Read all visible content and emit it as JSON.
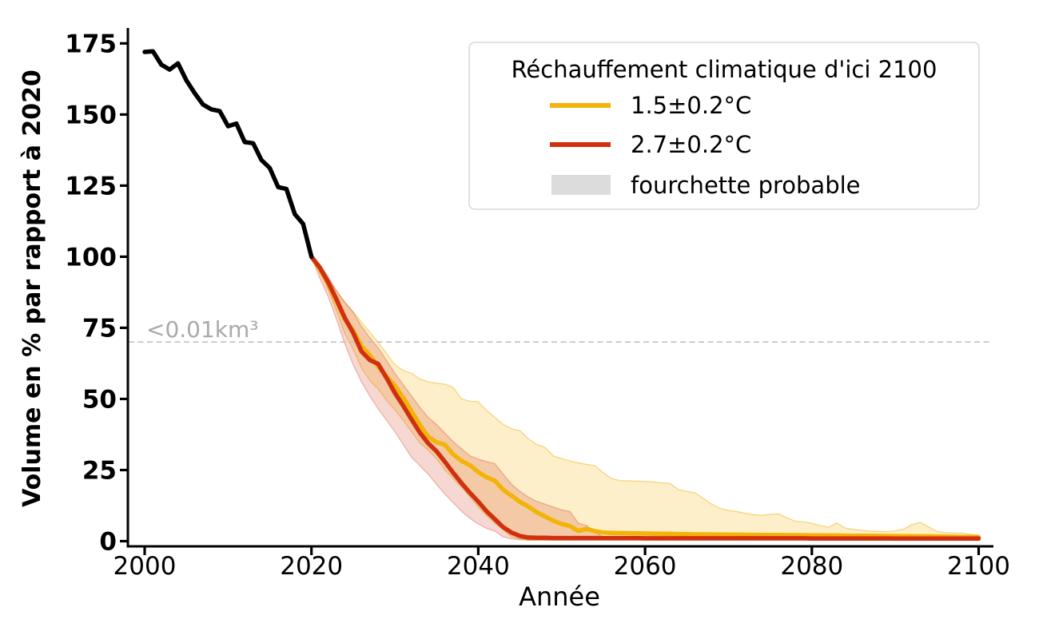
{
  "chart_data": {
    "type": "line",
    "title": "",
    "xlabel": "Année",
    "ylabel": "Volume en % par rapport à 2020",
    "xticks": [
      2000,
      2020,
      2040,
      2060,
      2080,
      2100
    ],
    "yticks": [
      0,
      25,
      50,
      75,
      100,
      125,
      150,
      175
    ],
    "xlim": [
      1998,
      2101.5
    ],
    "ylim": [
      -1.8,
      182
    ],
    "grid": false,
    "threshold": {
      "text": "<0.01km³",
      "value": 70,
      "line_color": "#C0C0C0",
      "text_color": "#A9A9A9"
    },
    "legend": {
      "position": "upper right",
      "title": "Réchauffement climatique d'ici 2100",
      "entries": [
        {
          "label": "1.5±0.2°C",
          "type": "line",
          "color": "#F2B408"
        },
        {
          "label": "2.7±0.2°C",
          "type": "line",
          "color": "#D0300F"
        },
        {
          "label": "fourchette probable",
          "type": "patch",
          "fill": "#DCDCDC",
          "edge": "#C6C6C6"
        }
      ]
    },
    "series": [
      {
        "name": "volume-historique",
        "color": "#000000",
        "start_year": 2000,
        "values": [
          172,
          172.2,
          167.5,
          165.8,
          168,
          162,
          157.5,
          153.5,
          151.8,
          151.2,
          145.9,
          146.8,
          140.3,
          139.9,
          134,
          131.2,
          124.5,
          123.8,
          115,
          111.5,
          100
        ]
      },
      {
        "name": "scenario-1.5C",
        "label": "1.5±0.2°C",
        "color": "#F2B408",
        "start_year": 2020,
        "values": [
          100,
          95.6,
          90.4,
          84.3,
          78.1,
          74,
          68.6,
          65.4,
          61.4,
          58,
          54.7,
          50.4,
          45.7,
          40.9,
          36.7,
          34.8,
          33.9,
          30.5,
          28.2,
          26.7,
          24.3,
          22.5,
          21.2,
          18,
          16,
          13.8,
          12.2,
          10.2,
          8.7,
          7.2,
          6,
          5.3,
          3.6,
          4.3,
          3.5,
          3,
          2.9,
          2.85,
          2.8,
          2.75,
          2.7,
          2.65,
          2.6,
          2.55,
          2.5,
          2.45,
          2.4,
          2.38,
          2.35,
          2.32,
          2.3,
          2.28,
          2.25,
          2.22,
          2.2,
          2.18,
          2.15,
          2.12,
          2.1,
          2.08,
          2.05,
          2.02,
          2,
          1.98,
          1.95,
          1.92,
          1.9,
          1.88,
          1.85,
          1.82,
          1.8,
          1.78,
          1.75,
          1.72,
          1.7,
          1.65,
          1.6,
          1.55,
          1.5,
          1.45,
          1.4
        ],
        "band": {
          "fill": "rgba(246,183,10,0.22)",
          "edge": "rgba(240,180,30,0.55)",
          "upper": [
            100,
            97.5,
            92,
            88,
            84,
            80.5,
            77,
            73.5,
            70,
            66,
            62,
            60,
            59,
            57,
            56,
            55.5,
            55.2,
            54,
            50,
            49.2,
            49,
            46,
            43.5,
            41,
            39.5,
            38.8,
            36,
            34,
            33,
            30,
            29,
            28.2,
            27.5,
            27,
            26.5,
            24,
            22,
            21.3,
            21.2,
            21.1,
            21,
            20.8,
            20.5,
            20.3,
            18.1,
            17.5,
            17,
            15,
            13,
            11.5,
            10.8,
            10.4,
            9.8,
            9.3,
            9.1,
            9.4,
            9.6,
            8.2,
            7,
            6.8,
            6.3,
            5.5,
            4.9,
            6.4,
            4.6,
            4.1,
            3.8,
            3.5,
            3.4,
            3.3,
            3.6,
            4.2,
            5.8,
            6.6,
            5,
            3.4,
            3,
            2.9,
            2.8,
            2.4,
            2.2
          ],
          "lower": [
            100,
            95,
            88.5,
            81,
            73,
            67.5,
            61,
            56.5,
            53.5,
            49.5,
            46.2,
            42.5,
            38.5,
            34.5,
            32,
            29,
            25,
            22,
            19,
            15.5,
            12,
            9,
            6.3,
            4,
            1.5,
            0.7,
            0.4,
            0.4,
            0.4,
            0.4,
            0.4,
            0.4,
            0.4,
            0.4,
            0.4,
            0.4,
            0.4,
            0.4,
            0.4,
            0.4,
            0.4,
            0.4,
            0.4,
            0.4,
            0.4,
            0.4,
            0.4,
            0.4,
            0.4,
            0.4,
            0.4,
            0.4,
            0.4,
            0.4,
            0.4,
            0.4,
            0.4,
            0.4,
            0.4,
            0.4,
            0.4,
            0.4,
            0.4,
            0.4,
            0.4,
            0.4,
            0.4,
            0.4,
            0.4,
            0.4,
            0.4,
            0.4,
            0.4,
            0.4,
            0.4,
            0.4,
            0.4,
            0.4,
            0.4,
            0.4,
            0.4
          ]
        }
      },
      {
        "name": "scenario-2.7C",
        "label": "2.7±0.2°C",
        "color": "#D0300F",
        "start_year": 2020,
        "values": [
          100,
          96.2,
          91.1,
          85,
          78.5,
          73.2,
          66.7,
          63.7,
          62.3,
          57.4,
          52.1,
          47.6,
          42.8,
          38.1,
          34.4,
          31.6,
          27.9,
          24,
          20.4,
          17,
          13.9,
          10.5,
          7.7,
          4.9,
          3,
          1.8,
          1.3,
          1.2,
          1.2,
          1.1,
          1.1,
          1.1,
          1.1,
          1.1,
          1.1,
          1.1,
          1.1,
          1.1,
          1.1,
          1.1,
          1,
          1,
          1,
          1,
          1,
          1,
          1,
          1,
          1,
          1,
          1,
          1,
          1,
          1,
          1,
          1,
          1,
          1,
          1,
          1,
          0.95,
          0.95,
          0.95,
          0.95,
          0.95,
          0.95,
          0.95,
          0.95,
          0.95,
          0.95,
          0.9,
          0.9,
          0.9,
          0.9,
          0.9,
          0.9,
          0.9,
          0.9,
          0.9,
          0.9,
          0.9
        ],
        "band": {
          "fill": "rgba(208,45,18,0.19)",
          "edge": "rgba(208,45,18,0.32)",
          "upper": [
            100,
            97.3,
            93,
            88,
            84,
            80.5,
            75.5,
            71.5,
            68,
            63.5,
            59,
            55,
            51,
            47,
            43.5,
            41,
            38,
            35,
            32.5,
            30,
            28.8,
            28,
            27.2,
            23.5,
            20,
            17.5,
            15.5,
            14,
            13,
            12,
            11,
            10.4,
            6.3,
            5.5,
            3,
            1.6,
            1.2,
            1.15,
            1.1,
            1.1,
            1,
            1,
            1,
            1,
            1,
            1,
            1,
            1,
            1,
            1,
            1,
            1,
            1,
            1,
            1,
            1,
            1,
            1,
            1,
            1,
            0.95,
            0.95,
            0.95,
            0.95,
            0.95,
            0.95,
            0.95,
            0.95,
            0.95,
            0.95,
            0.9,
            0.9,
            0.9,
            0.9,
            0.9,
            0.9,
            0.9,
            0.9,
            0.9,
            0.9,
            0.9
          ],
          "lower": [
            100,
            92.5,
            86,
            78,
            69.5,
            62,
            56,
            51,
            46.5,
            42.5,
            38.5,
            34,
            29.5,
            26.5,
            23.5,
            20,
            16.5,
            13.5,
            10.5,
            8,
            6,
            4.5,
            3.5,
            1.5,
            0.8,
            0.5,
            0.35,
            0.35,
            0.35,
            0.35,
            0.35,
            0.35,
            0.35,
            0.35,
            0.35,
            0.35,
            0.35,
            0.35,
            0.35,
            0.35,
            0.35,
            0.35,
            0.35,
            0.35,
            0.35,
            0.35,
            0.35,
            0.35,
            0.35,
            0.35,
            0.35,
            0.35,
            0.35,
            0.35,
            0.35,
            0.35,
            0.35,
            0.35,
            0.35,
            0.35,
            0.35,
            0.35,
            0.35,
            0.35,
            0.35,
            0.35,
            0.35,
            0.35,
            0.35,
            0.35,
            0.35,
            0.35,
            0.35,
            0.35,
            0.35,
            0.35,
            0.35,
            0.35,
            0.35,
            0.35,
            0.35
          ]
        }
      }
    ]
  }
}
